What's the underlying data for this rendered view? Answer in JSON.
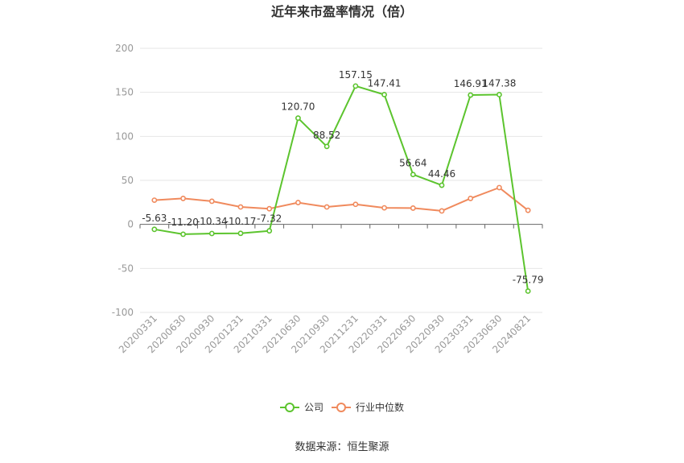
{
  "chart_data": {
    "type": "line",
    "title": "近年来市盈率情况（倍）",
    "categories": [
      "20200331",
      "20200630",
      "20200930",
      "20201231",
      "20210331",
      "20210630",
      "20210930",
      "20211231",
      "20220331",
      "20220630",
      "20220930",
      "20230331",
      "20230630",
      "20240821"
    ],
    "series": [
      {
        "name": "公司",
        "color": "#5cc42e",
        "values": [
          -5.63,
          -11.2,
          -10.34,
          -10.17,
          -7.32,
          120.7,
          88.52,
          157.15,
          147.41,
          56.64,
          44.46,
          146.91,
          147.38,
          -75.79
        ],
        "labels": [
          "-5.63",
          "-11.20",
          "-10.34",
          "-10.17",
          "-7.32",
          "120.70",
          "88.52",
          "157.15",
          "147.41",
          "56.64",
          "44.46",
          "146.91",
          "147.38",
          "-75.79"
        ]
      },
      {
        "name": "行业中位数",
        "color": "#f08a5d",
        "values": [
          27.5,
          29.5,
          26.3,
          19.8,
          17.8,
          24.8,
          19.8,
          22.8,
          18.8,
          18.5,
          15.3,
          29.5,
          41.8,
          16.0
        ]
      }
    ],
    "yticks": [
      "200",
      "150",
      "100",
      "50",
      "0",
      "-50",
      "-100"
    ],
    "ylim": [
      -100,
      200
    ],
    "grid": true,
    "legend_position": "bottom"
  },
  "source": "数据来源：恒生聚源"
}
